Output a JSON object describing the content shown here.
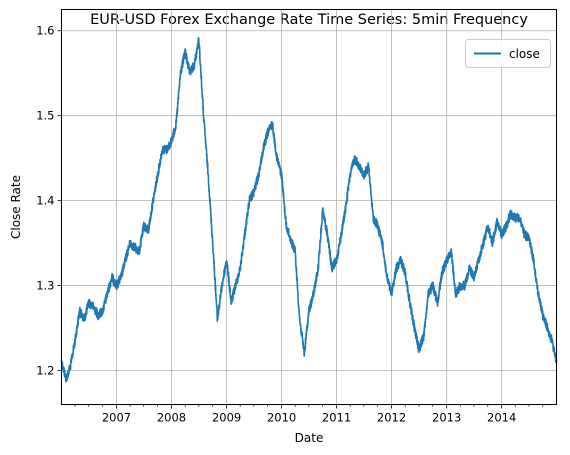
{
  "chart_data": {
    "type": "line",
    "title": "EUR-USD Forex Exchange Rate Time Series: 5min Frequency",
    "xlabel": "Date",
    "ylabel": "Close Rate",
    "x_type": "date",
    "xlim": [
      "2006-01-01",
      "2014-12-31"
    ],
    "ylim": [
      1.16,
      1.625
    ],
    "xticks": [
      {
        "value": "2007-01-01",
        "label": "2007"
      },
      {
        "value": "2008-01-01",
        "label": "2008"
      },
      {
        "value": "2009-01-01",
        "label": "2009"
      },
      {
        "value": "2010-01-01",
        "label": "2010"
      },
      {
        "value": "2011-01-01",
        "label": "2011"
      },
      {
        "value": "2012-01-01",
        "label": "2012"
      },
      {
        "value": "2013-01-01",
        "label": "2013"
      },
      {
        "value": "2014-01-01",
        "label": "2014"
      }
    ],
    "yticks": [
      {
        "value": 1.2,
        "label": "1.2"
      },
      {
        "value": 1.3,
        "label": "1.3"
      },
      {
        "value": 1.4,
        "label": "1.4"
      },
      {
        "value": 1.5,
        "label": "1.5"
      },
      {
        "value": 1.6,
        "label": "1.6"
      }
    ],
    "grid": true,
    "legend_position": "top-right",
    "series": [
      {
        "name": "close",
        "color": "#1f77b4",
        "points": [
          [
            "2006-01-01",
            1.21
          ],
          [
            "2006-02-01",
            1.19
          ],
          [
            "2006-03-01",
            1.205
          ],
          [
            "2006-04-01",
            1.235
          ],
          [
            "2006-05-01",
            1.27
          ],
          [
            "2006-06-01",
            1.26
          ],
          [
            "2006-07-01",
            1.28
          ],
          [
            "2006-08-01",
            1.275
          ],
          [
            "2006-09-01",
            1.265
          ],
          [
            "2006-10-01",
            1.27
          ],
          [
            "2006-11-01",
            1.29
          ],
          [
            "2006-12-01",
            1.31
          ],
          [
            "2007-01-01",
            1.3
          ],
          [
            "2007-02-01",
            1.31
          ],
          [
            "2007-03-01",
            1.33
          ],
          [
            "2007-04-01",
            1.35
          ],
          [
            "2007-05-01",
            1.345
          ],
          [
            "2007-06-01",
            1.34
          ],
          [
            "2007-07-01",
            1.37
          ],
          [
            "2007-08-01",
            1.365
          ],
          [
            "2007-09-01",
            1.4
          ],
          [
            "2007-10-01",
            1.43
          ],
          [
            "2007-11-01",
            1.46
          ],
          [
            "2007-12-01",
            1.46
          ],
          [
            "2008-01-01",
            1.47
          ],
          [
            "2008-02-01",
            1.49
          ],
          [
            "2008-03-01",
            1.55
          ],
          [
            "2008-04-01",
            1.575
          ],
          [
            "2008-05-01",
            1.55
          ],
          [
            "2008-06-01",
            1.56
          ],
          [
            "2008-07-01",
            1.59
          ],
          [
            "2008-08-01",
            1.5
          ],
          [
            "2008-09-01",
            1.43
          ],
          [
            "2008-10-01",
            1.35
          ],
          [
            "2008-11-01",
            1.26
          ],
          [
            "2008-12-01",
            1.3
          ],
          [
            "2009-01-01",
            1.33
          ],
          [
            "2009-02-01",
            1.28
          ],
          [
            "2009-03-01",
            1.3
          ],
          [
            "2009-04-01",
            1.32
          ],
          [
            "2009-05-01",
            1.36
          ],
          [
            "2009-06-01",
            1.4
          ],
          [
            "2009-07-01",
            1.41
          ],
          [
            "2009-08-01",
            1.43
          ],
          [
            "2009-09-01",
            1.46
          ],
          [
            "2009-10-01",
            1.48
          ],
          [
            "2009-11-01",
            1.49
          ],
          [
            "2009-12-01",
            1.45
          ],
          [
            "2010-01-01",
            1.43
          ],
          [
            "2010-02-01",
            1.37
          ],
          [
            "2010-03-01",
            1.355
          ],
          [
            "2010-04-01",
            1.34
          ],
          [
            "2010-05-01",
            1.26
          ],
          [
            "2010-06-01",
            1.22
          ],
          [
            "2010-07-01",
            1.27
          ],
          [
            "2010-08-01",
            1.29
          ],
          [
            "2010-09-01",
            1.32
          ],
          [
            "2010-10-01",
            1.39
          ],
          [
            "2010-11-01",
            1.36
          ],
          [
            "2010-12-01",
            1.32
          ],
          [
            "2011-01-01",
            1.33
          ],
          [
            "2011-02-01",
            1.36
          ],
          [
            "2011-03-01",
            1.39
          ],
          [
            "2011-04-01",
            1.43
          ],
          [
            "2011-05-01",
            1.45
          ],
          [
            "2011-06-01",
            1.44
          ],
          [
            "2011-07-01",
            1.43
          ],
          [
            "2011-08-01",
            1.44
          ],
          [
            "2011-09-01",
            1.38
          ],
          [
            "2011-10-01",
            1.37
          ],
          [
            "2011-11-01",
            1.35
          ],
          [
            "2011-12-01",
            1.31
          ],
          [
            "2012-01-01",
            1.29
          ],
          [
            "2012-02-01",
            1.32
          ],
          [
            "2012-03-01",
            1.33
          ],
          [
            "2012-04-01",
            1.315
          ],
          [
            "2012-05-01",
            1.28
          ],
          [
            "2012-06-01",
            1.25
          ],
          [
            "2012-07-01",
            1.225
          ],
          [
            "2012-08-01",
            1.24
          ],
          [
            "2012-09-01",
            1.29
          ],
          [
            "2012-10-01",
            1.3
          ],
          [
            "2012-11-01",
            1.28
          ],
          [
            "2012-12-01",
            1.315
          ],
          [
            "2013-01-01",
            1.33
          ],
          [
            "2013-02-01",
            1.34
          ],
          [
            "2013-03-01",
            1.29
          ],
          [
            "2013-04-01",
            1.3
          ],
          [
            "2013-05-01",
            1.3
          ],
          [
            "2013-06-01",
            1.32
          ],
          [
            "2013-07-01",
            1.31
          ],
          [
            "2013-08-01",
            1.33
          ],
          [
            "2013-09-01",
            1.35
          ],
          [
            "2013-10-01",
            1.37
          ],
          [
            "2013-11-01",
            1.35
          ],
          [
            "2013-12-01",
            1.375
          ],
          [
            "2014-01-01",
            1.36
          ],
          [
            "2014-02-01",
            1.37
          ],
          [
            "2014-03-01",
            1.385
          ],
          [
            "2014-04-01",
            1.38
          ],
          [
            "2014-05-01",
            1.38
          ],
          [
            "2014-06-01",
            1.36
          ],
          [
            "2014-07-01",
            1.355
          ],
          [
            "2014-08-01",
            1.33
          ],
          [
            "2014-09-01",
            1.29
          ],
          [
            "2014-10-01",
            1.265
          ],
          [
            "2014-11-01",
            1.25
          ],
          [
            "2014-12-01",
            1.235
          ],
          [
            "2014-12-31",
            1.21
          ]
        ]
      }
    ]
  }
}
